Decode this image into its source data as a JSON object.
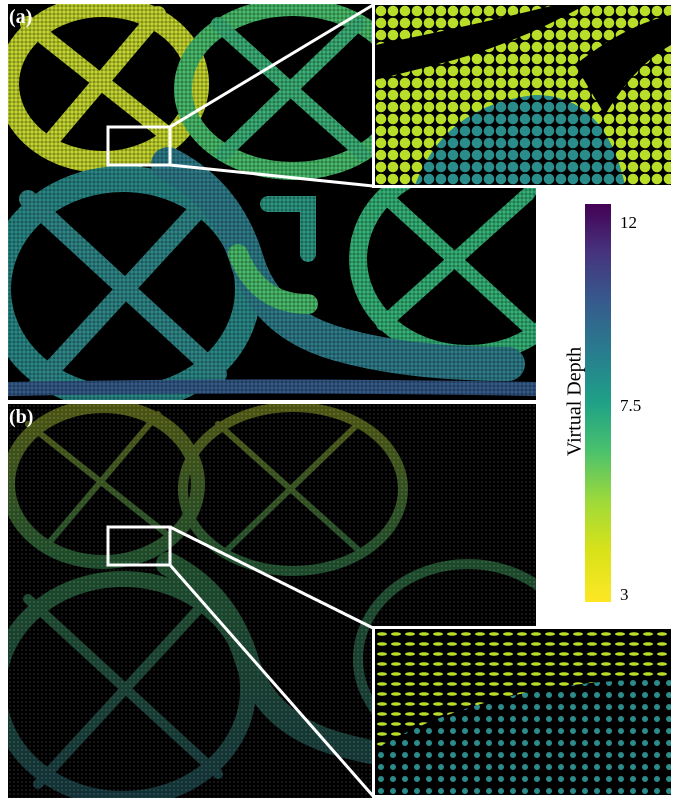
{
  "figure": {
    "panel_a_label": "(a)",
    "panel_b_label": "(b)"
  },
  "colorbar": {
    "title": "Virtual Depth",
    "ticks": [
      "12",
      "7.5",
      "3"
    ],
    "min": 3,
    "max": 12,
    "colormap": "viridis"
  },
  "colors": {
    "frame": "#ffffff",
    "background": "#000000",
    "ramp": [
      "#fde725",
      "#a0da39",
      "#4ac16d",
      "#1fa187",
      "#277f8e",
      "#365c8d",
      "#46337e",
      "#440154"
    ]
  }
}
